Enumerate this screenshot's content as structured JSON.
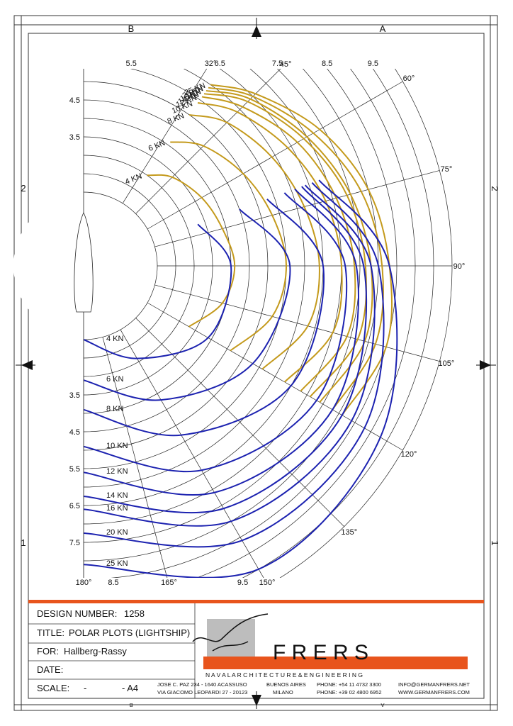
{
  "chart_data": {
    "type": "polar",
    "rlim": [
      0,
      10
    ],
    "rgrid": [
      2,
      2.5,
      3,
      3.5,
      4,
      4.5,
      5,
      5.5,
      6,
      6.5,
      7,
      7.5,
      8,
      8.5,
      9,
      9.5,
      10
    ],
    "rticks": [
      3.5,
      4.5,
      5.5,
      6.5,
      7.5,
      8.5,
      9.5
    ],
    "angleticks": [
      {
        "value": 32,
        "label": "32°"
      },
      {
        "value": 45,
        "label": "45°"
      },
      {
        "value": 60,
        "label": "60°"
      },
      {
        "value": 75,
        "label": "75°"
      },
      {
        "value": 90,
        "label": "90°"
      },
      {
        "value": 105,
        "label": "105°"
      },
      {
        "value": 120,
        "label": "120°"
      },
      {
        "value": 135,
        "label": "135°"
      },
      {
        "value": 150,
        "label": "150°"
      },
      {
        "value": 165,
        "label": "165°"
      },
      {
        "value": 180,
        "label": "180°"
      }
    ],
    "series": [
      {
        "name": "4 KN",
        "color": "#c49a1c",
        "x": [
          35,
          45,
          60,
          75,
          90,
          105,
          120
        ],
        "values": [
          3.0,
          3.4,
          3.7,
          3.9,
          4.1,
          3.9,
          3.3
        ]
      },
      {
        "name": "6 KN",
        "color": "#c49a1c",
        "x": [
          35,
          45,
          60,
          75,
          90,
          105,
          120
        ],
        "values": [
          4.1,
          4.6,
          5.0,
          5.3,
          5.5,
          5.3,
          4.6
        ]
      },
      {
        "name": "8 KN",
        "color": "#c49a1c",
        "x": [
          35,
          45,
          60,
          75,
          90,
          105,
          120
        ],
        "values": [
          5.0,
          5.5,
          5.9,
          6.2,
          6.4,
          6.3,
          5.6
        ]
      },
      {
        "name": "10 KN",
        "color": "#c49a1c",
        "x": [
          35,
          45,
          60,
          75,
          90,
          105,
          120
        ],
        "values": [
          5.4,
          5.9,
          6.4,
          6.8,
          7.0,
          7.0,
          6.3
        ]
      },
      {
        "name": "12 KN",
        "color": "#c49a1c",
        "x": [
          35,
          45,
          60,
          75,
          90,
          105,
          120
        ],
        "values": [
          5.6,
          6.1,
          6.7,
          7.1,
          7.35,
          7.4,
          6.8
        ]
      },
      {
        "name": "14 KN",
        "color": "#c49a1c",
        "x": [
          35,
          45,
          60,
          75,
          90,
          105,
          120
        ],
        "values": [
          5.7,
          6.3,
          6.9,
          7.4,
          7.65,
          7.7,
          7.1
        ]
      },
      {
        "name": "16 KN",
        "color": "#c49a1c",
        "x": [
          35,
          45,
          60,
          75,
          90,
          105,
          120
        ],
        "values": [
          5.8,
          6.4,
          7.0,
          7.5,
          7.8,
          7.9,
          7.4
        ]
      },
      {
        "name": "20 KN",
        "color": "#c49a1c",
        "x": [
          35,
          45,
          60,
          75,
          90,
          105,
          120
        ],
        "values": [
          5.9,
          6.5,
          7.2,
          7.8,
          8.1,
          8.2,
          7.8
        ]
      },
      {
        "name": "25 KN",
        "color": "#c49a1c",
        "x": [
          35,
          45,
          60,
          75,
          90,
          105,
          120
        ],
        "values": [
          6.0,
          6.6,
          7.4,
          8.0,
          8.3,
          8.5,
          8.1
        ]
      },
      {
        "name": "4 KN",
        "color": "#1c22b0",
        "x": [
          70,
          90,
          120,
          150,
          180
        ],
        "values": [
          3.3,
          4.0,
          3.9,
          2.9,
          2.0
        ]
      },
      {
        "name": "6 KN",
        "color": "#1c22b0",
        "x": [
          70,
          90,
          120,
          150,
          180
        ],
        "values": [
          4.5,
          5.6,
          5.3,
          4.2,
          3.1
        ]
      },
      {
        "name": "8 KN",
        "color": "#1c22b0",
        "x": [
          70,
          90,
          120,
          150,
          180
        ],
        "values": [
          5.3,
          6.5,
          6.5,
          5.3,
          3.9
        ]
      },
      {
        "name": "10 KN",
        "color": "#1c22b0",
        "x": [
          70,
          90,
          120,
          150,
          180
        ],
        "values": [
          5.8,
          7.1,
          7.3,
          6.4,
          4.9
        ]
      },
      {
        "name": "12 KN",
        "color": "#1c22b0",
        "x": [
          70,
          90,
          120,
          150,
          180
        ],
        "values": [
          6.1,
          7.4,
          7.8,
          7.1,
          5.6
        ]
      },
      {
        "name": "14 KN",
        "color": "#1c22b0",
        "x": [
          70,
          90,
          120,
          150,
          180
        ],
        "values": [
          6.3,
          7.6,
          8.1,
          7.6,
          6.25
        ]
      },
      {
        "name": "16 KN",
        "color": "#1c22b0",
        "x": [
          70,
          90,
          120,
          150,
          180
        ],
        "values": [
          6.4,
          7.8,
          8.4,
          8.0,
          6.6
        ]
      },
      {
        "name": "20 KN",
        "color": "#1c22b0",
        "x": [
          70,
          90,
          120,
          150,
          180
        ],
        "values": [
          6.6,
          8.0,
          8.8,
          8.6,
          7.25
        ]
      },
      {
        "name": "25 KN",
        "color": "#1c22b0",
        "x": [
          70,
          90,
          120,
          150,
          180
        ],
        "values": [
          6.8,
          8.3,
          9.3,
          9.5,
          8.1
        ]
      }
    ]
  },
  "sheet": {
    "zone_letters": [
      "B",
      "A"
    ],
    "zone_numbers": [
      "2",
      "1"
    ]
  },
  "title_block": {
    "design_number": {
      "label": "DESIGN NUMBER:",
      "value": "1258"
    },
    "title": {
      "label": "TITLE:",
      "value": "POLAR PLOTS (LIGHTSHIP)"
    },
    "for": {
      "label": "FOR:",
      "value": "Hallberg-Rassy"
    },
    "date": {
      "label": "DATE:"
    },
    "scale": {
      "label": "SCALE:",
      "value": "-",
      "size": "- A4"
    }
  },
  "company": {
    "name": "F R E R S",
    "tagline": "N A V A L   A R C H I T E C T U R E   &   E N G I N E E R I N G",
    "address_1": "JOSE C. PAZ 234 - 1640 ACASSUSO",
    "city_1": "BUENOS AIRES",
    "phone_1": "PHONE: +54 11 4732 3300",
    "email": "INFO@GERMANFRERS.NET",
    "address_2": "VIA GIACOMO LEOPARDI 27 - 20123",
    "city_2": "MILANO",
    "phone_2": "PHONE: +39 02 4800 6952",
    "web": "WWW.GERMANFRERS.COM"
  }
}
